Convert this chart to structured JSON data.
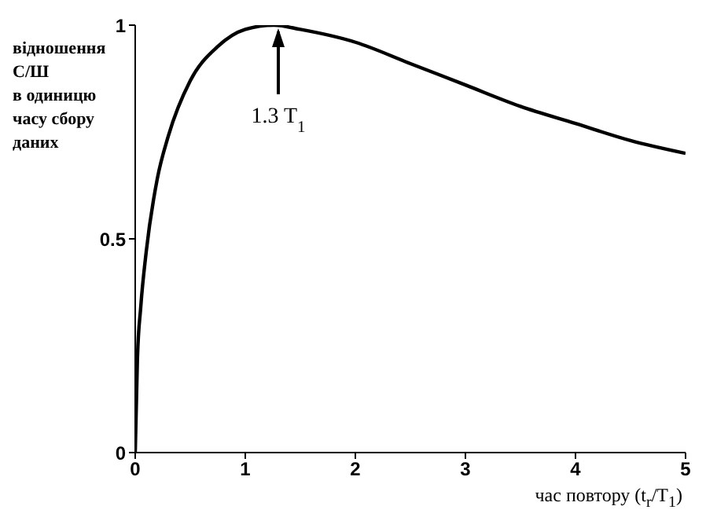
{
  "chart_data": {
    "type": "line",
    "ylabel": "відношення\nС/Ш\nв одиницю\nчасу сбору\nданих",
    "xlabel": "час повтору (t$_{r}$/T$_{1}$)",
    "x": [
      0,
      0.02,
      0.05,
      0.1,
      0.2,
      0.3,
      0.5,
      0.75,
      1,
      1.26,
      1.5,
      2,
      2.5,
      3,
      3.5,
      4,
      4.5,
      5
    ],
    "series": [
      {
        "color": "#000000",
        "values": [
          0,
          0.22,
          0.34,
          0.47,
          0.64,
          0.74,
          0.87,
          0.95,
          0.99,
          1,
          0.99,
          0.96,
          0.91,
          0.86,
          0.81,
          0.77,
          0.73,
          0.7
        ]
      }
    ],
    "xlim": [
      0,
      5
    ],
    "xticks": [
      0,
      1,
      2,
      3,
      4,
      5
    ],
    "ylim": [
      0,
      1
    ],
    "yticks": [
      0,
      0.5,
      1
    ],
    "grid": false,
    "legend": false,
    "marker": "none",
    "line_style": "solid",
    "annotations": [
      {
        "text": "1.3 T$_{1}$",
        "x": 1.3,
        "y": 1
      }
    ]
  }
}
